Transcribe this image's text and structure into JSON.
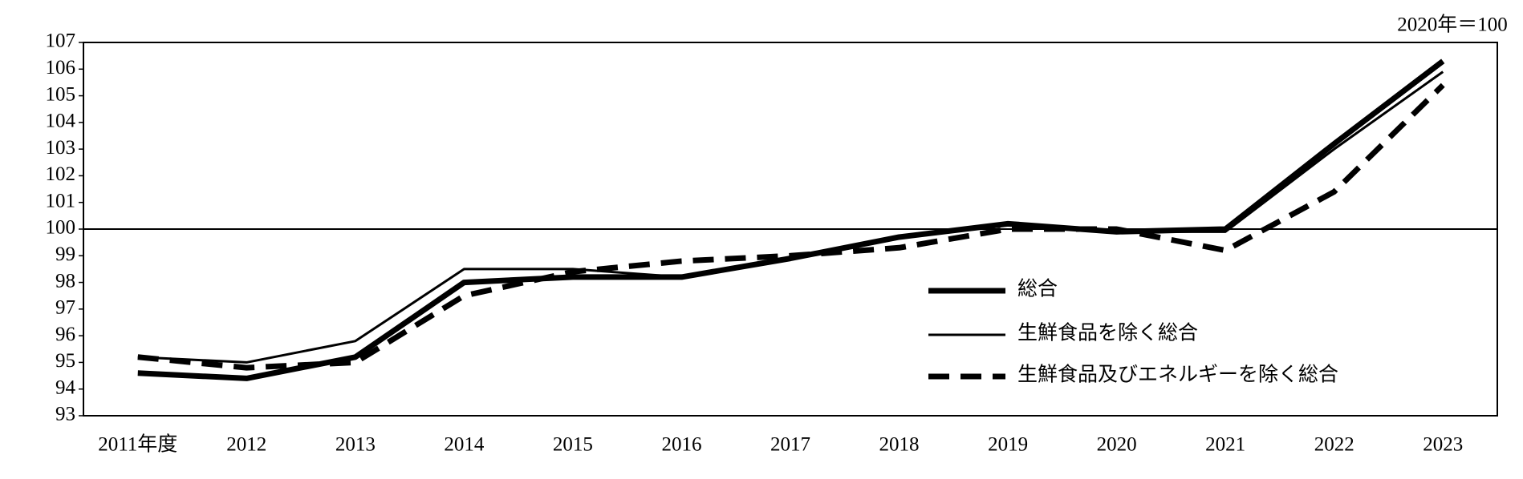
{
  "chart_data": {
    "type": "line",
    "note": "2020年＝100",
    "categories": [
      "2011年度",
      "2012",
      "2013",
      "2014",
      "2015",
      "2016",
      "2017",
      "2018",
      "2019",
      "2020",
      "2021",
      "2022",
      "2023"
    ],
    "series": [
      {
        "name": "総合",
        "color": "#000000",
        "width": 7,
        "style": "solid",
        "values": [
          94.6,
          94.4,
          95.2,
          98.0,
          98.2,
          98.2,
          98.9,
          99.7,
          100.2,
          99.9,
          100.0,
          103.2,
          106.3
        ]
      },
      {
        "name": "生鮮食品を除く総合",
        "color": "#000000",
        "width": 3,
        "style": "solid",
        "values": [
          95.2,
          95.0,
          95.8,
          98.5,
          98.5,
          98.2,
          98.9,
          99.7,
          100.2,
          99.9,
          99.9,
          103.0,
          105.9
        ]
      },
      {
        "name": "生鮮食品及びエネルギーを除く総合",
        "color": "#000000",
        "width": 7,
        "style": "dashed",
        "values": [
          95.2,
          94.8,
          95.0,
          97.5,
          98.4,
          98.8,
          99.0,
          99.3,
          100.0,
          100.0,
          99.2,
          101.4,
          105.4
        ]
      }
    ],
    "reference_line": 100,
    "ylim": [
      93,
      107
    ],
    "yticks": [
      93,
      94,
      95,
      96,
      97,
      98,
      99,
      100,
      101,
      102,
      103,
      104,
      105,
      106,
      107
    ],
    "grid": false
  }
}
